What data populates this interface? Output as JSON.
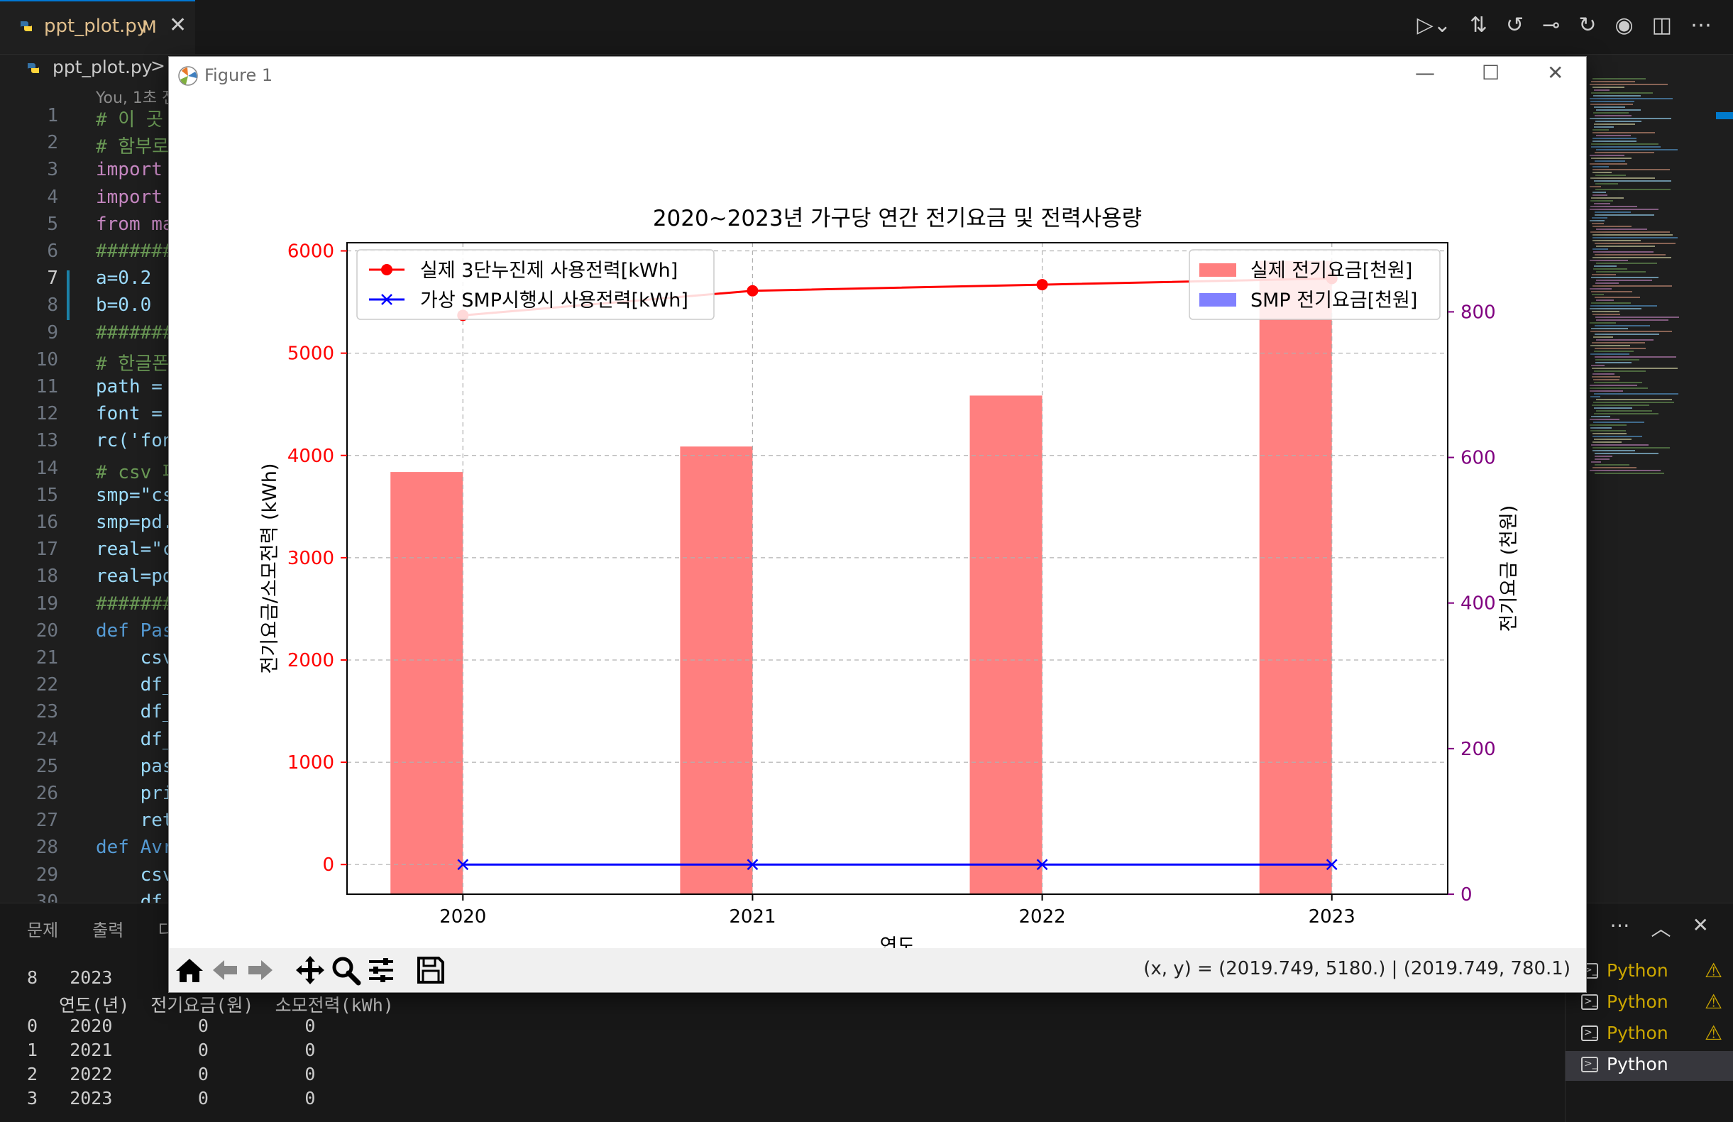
{
  "editor_tab": {
    "file": "ppt_plot.py",
    "modified": "M"
  },
  "breadcrumb": {
    "file": "ppt_plot.py",
    "separator": ">"
  },
  "blame": "You, 1초 전",
  "code_lines": [
    {
      "n": "1",
      "text": "# 이 곳"
    },
    {
      "n": "2",
      "text": "# 함부로"
    },
    {
      "n": "3",
      "text": "import "
    },
    {
      "n": "4",
      "text": "import "
    },
    {
      "n": "5",
      "text": "from ma"
    },
    {
      "n": "6",
      "text": "#######"
    },
    {
      "n": "7",
      "text": "a=0.2"
    },
    {
      "n": "8",
      "text": "b=0.0"
    },
    {
      "n": "9",
      "text": "#######"
    },
    {
      "n": "10",
      "text": "# 한글폰"
    },
    {
      "n": "11",
      "text": "path = "
    },
    {
      "n": "12",
      "text": "font = "
    },
    {
      "n": "13",
      "text": "rc('fon"
    },
    {
      "n": "14",
      "text": "# csv 파"
    },
    {
      "n": "15",
      "text": "smp=\"cs"
    },
    {
      "n": "16",
      "text": "smp=pd."
    },
    {
      "n": "17",
      "text": "real=\"c"
    },
    {
      "n": "18",
      "text": "real=pd"
    },
    {
      "n": "19",
      "text": "#######"
    },
    {
      "n": "20",
      "text": "def Pas"
    },
    {
      "n": "21",
      "text": "    csv"
    },
    {
      "n": "22",
      "text": "    df_"
    },
    {
      "n": "23",
      "text": "    df_"
    },
    {
      "n": "24",
      "text": "    df_"
    },
    {
      "n": "25",
      "text": "    pas"
    },
    {
      "n": "26",
      "text": "    pri"
    },
    {
      "n": "27",
      "text": "    ret"
    },
    {
      "n": "28",
      "text": "def Avr"
    },
    {
      "n": "29",
      "text": "    csv"
    },
    {
      "n": "30",
      "text": "    df_"
    }
  ],
  "panel": {
    "tabs": [
      "문제",
      "출력",
      "디"
    ],
    "terminal_lines": [
      "8   2023",
      "   연도(년)  전기요금(원)  소모전력(kWh)",
      "0   2020        0         0",
      "1   2021        0         0",
      "2   2022        0         0",
      "3   2023        0         0"
    ],
    "terminals": [
      {
        "name": "Python",
        "warn": "⚠"
      },
      {
        "name": "Python",
        "warn": "⚠"
      },
      {
        "name": "Python",
        "warn": "⚠"
      },
      {
        "name": "Python",
        "warn": ""
      }
    ]
  },
  "figure": {
    "title": "Figure 1",
    "coords": "(x, y) = (2019.749, 5180.) | (2019.749, 780.1)"
  },
  "colors": {
    "real_line": "#ff0000",
    "smp_line": "#0000ff",
    "real_bar": "#ff7f7f",
    "smp_bar": "#8080ff",
    "right_axis": "#800080"
  },
  "chart_data": {
    "type": "bar",
    "title": "2020~2023년 가구당 연간 전기요금 및 전력사용량",
    "xlabel": "연도",
    "ylabel": "전기요금/소모전력 (kWh)",
    "ylabel_right": "전기요금 (천원)",
    "categories": [
      "2020",
      "2021",
      "2022",
      "2023"
    ],
    "x": [
      2020,
      2021,
      2022,
      2023
    ],
    "xlim": [
      2019.6,
      2023.4
    ],
    "ylim": [
      -290,
      6080
    ],
    "ylim_right": [
      0,
      895
    ],
    "yticks": [
      0,
      1000,
      2000,
      3000,
      4000,
      5000,
      6000
    ],
    "yticks_right": [
      0,
      200,
      400,
      600,
      800
    ],
    "grid": true,
    "series": [
      {
        "name": "실제 3단누진제 사용전력[kWh]",
        "kind": "line",
        "axis": "left",
        "marker": "o",
        "values": [
          5370,
          5610,
          5670,
          5730
        ]
      },
      {
        "name": "가상 SMP시행시 사용전력[kWh]",
        "kind": "line",
        "axis": "left",
        "marker": "x",
        "values": [
          0,
          0,
          0,
          0
        ]
      },
      {
        "name": "실제 전기요금[천원]",
        "kind": "bar",
        "axis": "right",
        "values": [
          580,
          615,
          685,
          870
        ]
      },
      {
        "name": "SMP 전기요금[천원]",
        "kind": "bar",
        "axis": "right",
        "values": [
          0,
          0,
          0,
          0
        ]
      }
    ],
    "legend_left": "upper-left",
    "legend_right": "upper-right"
  }
}
